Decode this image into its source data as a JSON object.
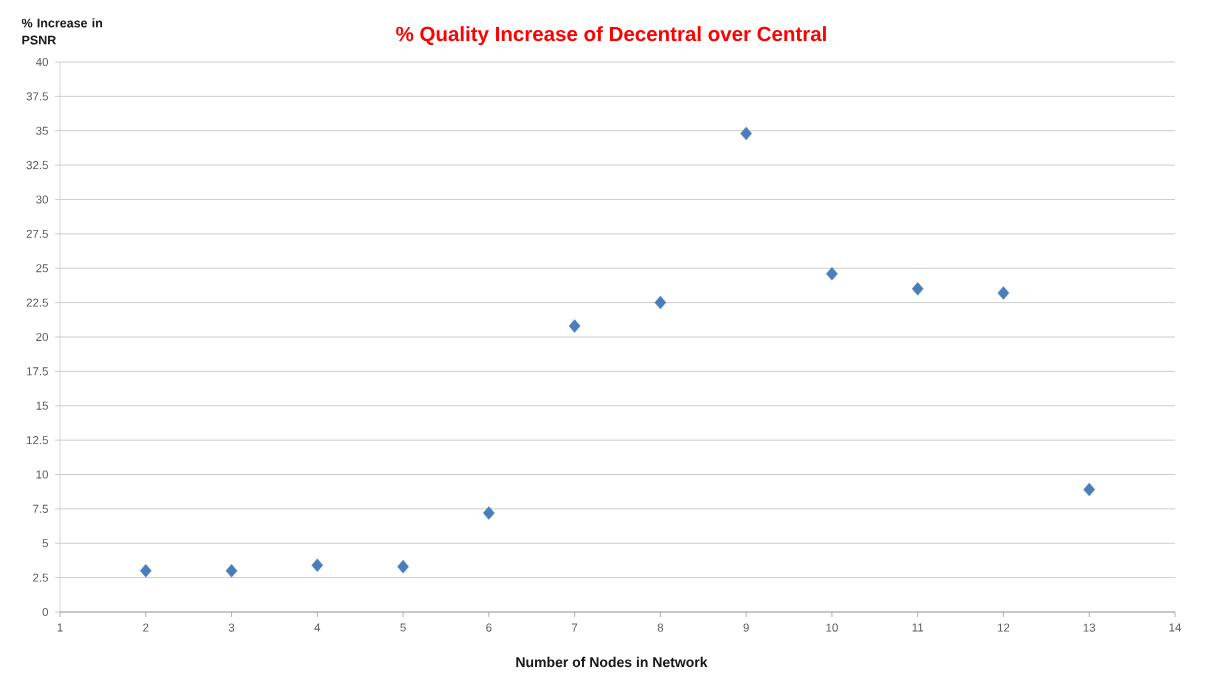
{
  "chart_data": {
    "type": "scatter",
    "title": "% Quality Increase of Decentral over Central",
    "xlabel": "Number of Nodes in Network",
    "ylabel": "% Increase in PSNR",
    "x": [
      2,
      3,
      4,
      5,
      6,
      7,
      8,
      9,
      10,
      11,
      12,
      13
    ],
    "values": [
      3.0,
      3.0,
      3.4,
      3.3,
      7.2,
      20.8,
      22.5,
      34.8,
      24.6,
      23.5,
      23.2,
      8.9
    ],
    "color": "#4a7ebb",
    "marker": "diamond",
    "grid": "y",
    "xlim": [
      1,
      14
    ],
    "xticks": [
      1,
      2,
      3,
      4,
      5,
      6,
      7,
      8,
      9,
      10,
      11,
      12,
      13,
      14
    ],
    "ylim": [
      0,
      40
    ],
    "yticks": [
      0,
      2.5,
      5,
      7.5,
      10,
      12.5,
      15,
      17.5,
      20,
      22.5,
      25,
      27.5,
      30,
      32.5,
      35,
      37.5,
      40
    ]
  }
}
